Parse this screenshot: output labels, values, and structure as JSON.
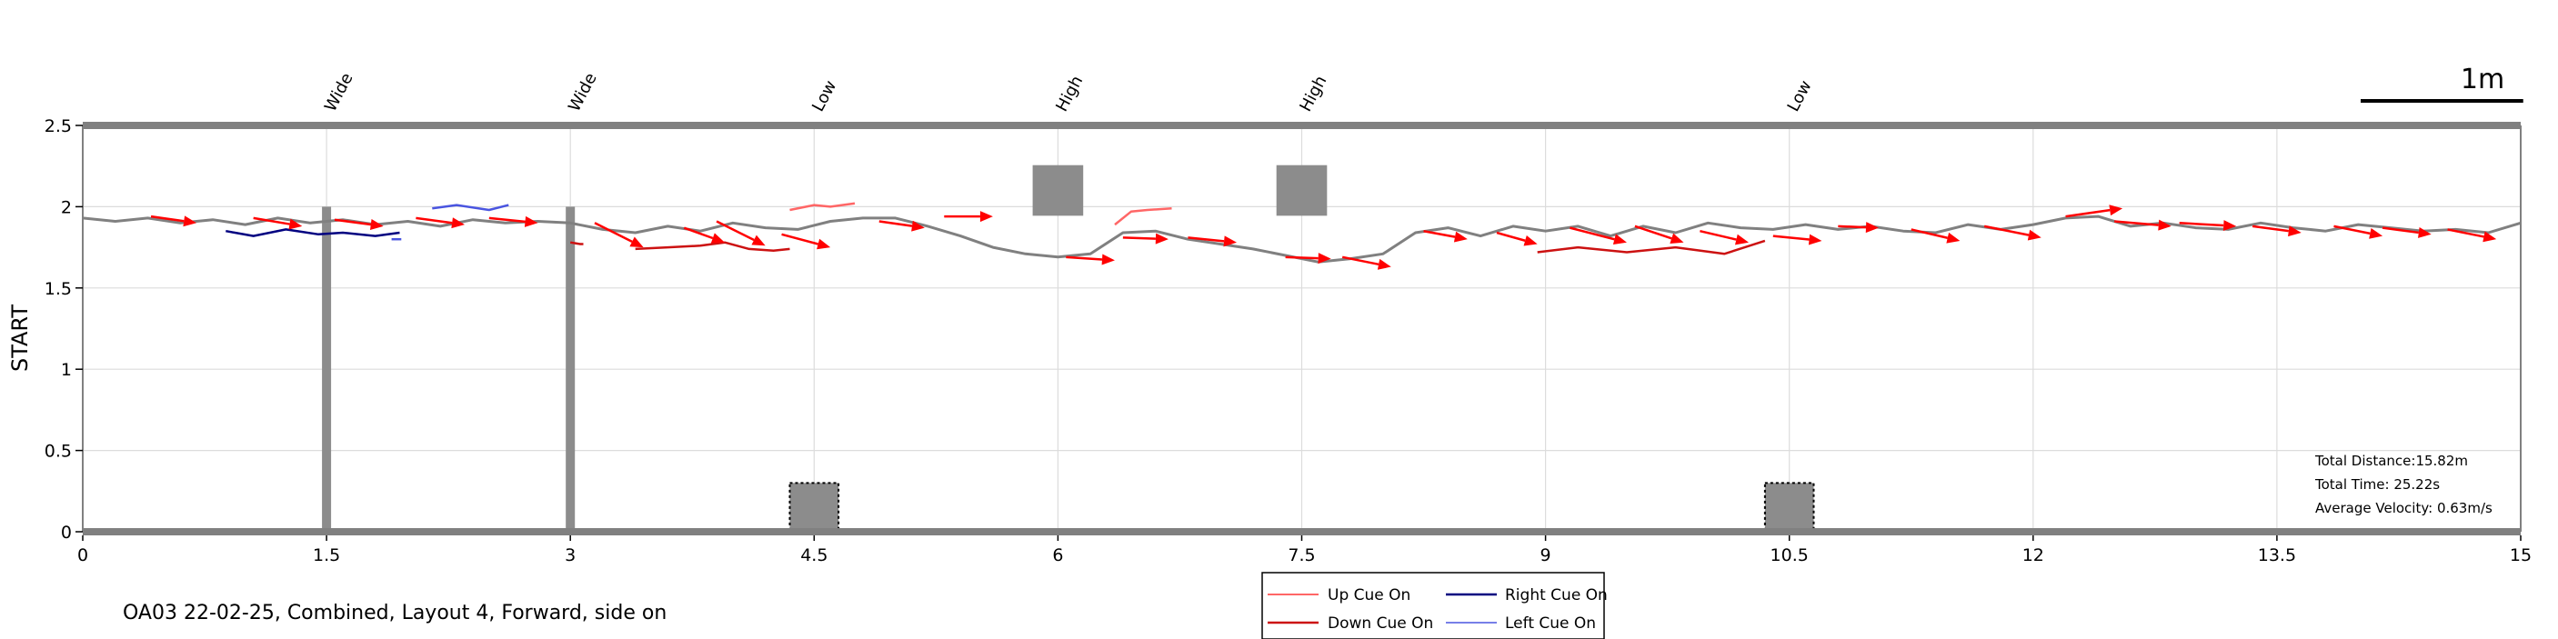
{
  "chart_data": {
    "type": "line",
    "ylabel": "START",
    "xlabel": "",
    "xlim": [
      0,
      15
    ],
    "ylim": [
      0,
      2.5
    ],
    "x_ticks": [
      "0",
      "1.5",
      "3",
      "4.5",
      "6",
      "7.5",
      "9",
      "10.5",
      "12",
      "13.5",
      "15"
    ],
    "y_ticks": [
      "0",
      "0.5",
      "1",
      "1.5",
      "2",
      "2.5"
    ],
    "grid": true,
    "scale_bar": {
      "label": "1m",
      "length": 1.0
    },
    "obstacle_labels": [
      {
        "x": 1.5,
        "label": "Wide"
      },
      {
        "x": 3.0,
        "label": "Wide"
      },
      {
        "x": 4.5,
        "label": "Low"
      },
      {
        "x": 6.0,
        "label": "High"
      },
      {
        "x": 7.5,
        "label": "High"
      },
      {
        "x": 10.5,
        "label": "Low"
      }
    ],
    "obstacles": [
      {
        "kind": "wide-bar",
        "x": 1.5,
        "y_from": 0.0,
        "y_to": 2.0
      },
      {
        "kind": "wide-bar",
        "x": 3.0,
        "y_from": 0.0,
        "y_to": 2.0
      },
      {
        "kind": "low-block",
        "x_from": 4.35,
        "x_to": 4.65,
        "y_from": 0.0,
        "y_to": 0.3
      },
      {
        "kind": "low-block",
        "x_from": 10.35,
        "x_to": 10.65,
        "y_from": 0.0,
        "y_to": 0.3
      },
      {
        "kind": "high-block",
        "x_from": 5.85,
        "x_to": 6.15,
        "y_from": 1.95,
        "y_to": 2.25
      },
      {
        "kind": "high-block",
        "x_from": 7.35,
        "x_to": 7.65,
        "y_from": 1.95,
        "y_to": 2.25
      }
    ],
    "series": [
      {
        "name": "",
        "color": "#808080",
        "x": [
          0.0,
          0.2,
          0.4,
          0.6,
          0.8,
          1.0,
          1.2,
          1.4,
          1.6,
          1.8,
          2.0,
          2.2,
          2.4,
          2.6,
          2.8,
          3.0,
          3.2,
          3.4,
          3.6,
          3.8,
          4.0,
          4.2,
          4.4,
          4.6,
          4.8,
          5.0,
          5.2,
          5.4,
          5.6,
          5.8,
          6.0,
          6.2,
          6.4,
          6.6,
          6.8,
          7.0,
          7.2,
          7.4,
          7.6,
          7.8,
          8.0,
          8.2,
          8.4,
          8.6,
          8.8,
          9.0,
          9.2,
          9.4,
          9.6,
          9.8,
          10.0,
          10.2,
          10.4,
          10.6,
          10.8,
          11.0,
          11.2,
          11.4,
          11.6,
          11.8,
          12.0,
          12.2,
          12.4,
          12.6,
          12.8,
          13.0,
          13.2,
          13.4,
          13.6,
          13.8,
          14.0,
          14.2,
          14.4,
          14.6,
          14.8,
          15.0
        ],
        "y": [
          1.93,
          1.91,
          1.93,
          1.9,
          1.92,
          1.89,
          1.93,
          1.9,
          1.92,
          1.89,
          1.91,
          1.88,
          1.92,
          1.9,
          1.91,
          1.9,
          1.86,
          1.84,
          1.88,
          1.85,
          1.9,
          1.87,
          1.86,
          1.91,
          1.93,
          1.93,
          1.88,
          1.82,
          1.75,
          1.71,
          1.69,
          1.71,
          1.84,
          1.85,
          1.8,
          1.77,
          1.74,
          1.7,
          1.66,
          1.68,
          1.71,
          1.84,
          1.87,
          1.82,
          1.88,
          1.85,
          1.88,
          1.82,
          1.88,
          1.84,
          1.9,
          1.87,
          1.86,
          1.89,
          1.86,
          1.88,
          1.85,
          1.84,
          1.89,
          1.86,
          1.89,
          1.93,
          1.94,
          1.88,
          1.9,
          1.87,
          1.86,
          1.9,
          1.87,
          1.85,
          1.89,
          1.87,
          1.85,
          1.86,
          1.84,
          1.9
        ]
      }
    ],
    "cue_series": [
      {
        "name": "Up Cue On",
        "color": "#ff6666",
        "segments": [
          {
            "x": [
              4.35,
              4.5,
              4.6,
              4.75
            ],
            "y": [
              1.98,
              2.01,
              2.0,
              2.02
            ]
          },
          {
            "x": [
              6.35,
              6.45,
              6.55,
              6.7
            ],
            "y": [
              1.89,
              1.97,
              1.98,
              1.99
            ]
          }
        ]
      },
      {
        "name": "Down Cue On",
        "color": "#cc1111",
        "segments": [
          {
            "x": [
              3.0,
              3.06,
              3.08
            ],
            "y": [
              1.78,
              1.77,
              1.77
            ]
          },
          {
            "x": [
              3.4,
              3.6,
              3.8,
              3.95,
              4.1,
              4.25,
              4.35
            ],
            "y": [
              1.74,
              1.75,
              1.76,
              1.78,
              1.74,
              1.73,
              1.74
            ]
          },
          {
            "x": [
              8.95,
              9.2,
              9.5,
              9.8,
              10.1,
              10.35
            ],
            "y": [
              1.72,
              1.75,
              1.72,
              1.75,
              1.71,
              1.79
            ]
          }
        ]
      },
      {
        "name": "Right Cue On",
        "color": "#000080",
        "segments": [
          {
            "x": [
              0.88,
              1.05,
              1.25,
              1.45,
              1.6,
              1.8,
              1.95
            ],
            "y": [
              1.85,
              1.82,
              1.86,
              1.83,
              1.84,
              1.82,
              1.84
            ]
          }
        ]
      },
      {
        "name": "Left Cue On",
        "color": "#4a55e0",
        "segments": [
          {
            "x": [
              2.15,
              2.3,
              2.5,
              2.62
            ],
            "y": [
              1.99,
              2.01,
              1.98,
              2.01
            ]
          },
          {
            "x": [
              1.9,
              1.96
            ],
            "y": [
              1.8,
              1.8
            ]
          }
        ]
      }
    ],
    "arrows": [
      {
        "x": [
          0.42,
          0.7
        ],
        "y": [
          1.94,
          1.9
        ]
      },
      {
        "x": [
          1.05,
          1.35
        ],
        "y": [
          1.93,
          1.88
        ]
      },
      {
        "x": [
          1.55,
          1.85
        ],
        "y": [
          1.92,
          1.88
        ]
      },
      {
        "x": [
          2.05,
          2.35
        ],
        "y": [
          1.93,
          1.89
        ]
      },
      {
        "x": [
          2.5,
          2.8
        ],
        "y": [
          1.93,
          1.9
        ]
      },
      {
        "x": [
          3.15,
          3.45
        ],
        "y": [
          1.9,
          1.75
        ]
      },
      {
        "x": [
          3.7,
          3.95
        ],
        "y": [
          1.87,
          1.78
        ]
      },
      {
        "x": [
          3.9,
          4.2
        ],
        "y": [
          1.91,
          1.76
        ]
      },
      {
        "x": [
          4.3,
          4.6
        ],
        "y": [
          1.83,
          1.75
        ]
      },
      {
        "x": [
          4.9,
          5.18
        ],
        "y": [
          1.91,
          1.87
        ]
      },
      {
        "x": [
          5.3,
          5.6
        ],
        "y": [
          1.94,
          1.94
        ]
      },
      {
        "x": [
          6.05,
          6.35
        ],
        "y": [
          1.69,
          1.67
        ]
      },
      {
        "x": [
          6.4,
          6.68
        ],
        "y": [
          1.81,
          1.8
        ]
      },
      {
        "x": [
          6.8,
          7.1
        ],
        "y": [
          1.81,
          1.78
        ]
      },
      {
        "x": [
          7.4,
          7.68
        ],
        "y": [
          1.69,
          1.68
        ]
      },
      {
        "x": [
          7.75,
          8.05
        ],
        "y": [
          1.69,
          1.63
        ]
      },
      {
        "x": [
          8.25,
          8.52
        ],
        "y": [
          1.85,
          1.8
        ]
      },
      {
        "x": [
          8.7,
          8.95
        ],
        "y": [
          1.84,
          1.77
        ]
      },
      {
        "x": [
          9.15,
          9.5
        ],
        "y": [
          1.87,
          1.78
        ]
      },
      {
        "x": [
          9.55,
          9.85
        ],
        "y": [
          1.88,
          1.78
        ]
      },
      {
        "x": [
          9.95,
          10.25
        ],
        "y": [
          1.85,
          1.78
        ]
      },
      {
        "x": [
          10.4,
          10.7
        ],
        "y": [
          1.82,
          1.79
        ]
      },
      {
        "x": [
          10.8,
          11.05
        ],
        "y": [
          1.88,
          1.87
        ]
      },
      {
        "x": [
          11.25,
          11.55
        ],
        "y": [
          1.86,
          1.79
        ]
      },
      {
        "x": [
          11.7,
          12.05
        ],
        "y": [
          1.88,
          1.81
        ]
      },
      {
        "x": [
          12.2,
          12.55
        ],
        "y": [
          1.94,
          1.99
        ]
      },
      {
        "x": [
          12.5,
          12.85
        ],
        "y": [
          1.91,
          1.88
        ]
      },
      {
        "x": [
          12.9,
          13.25
        ],
        "y": [
          1.9,
          1.88
        ]
      },
      {
        "x": [
          13.35,
          13.65
        ],
        "y": [
          1.88,
          1.84
        ]
      },
      {
        "x": [
          13.85,
          14.15
        ],
        "y": [
          1.88,
          1.82
        ]
      },
      {
        "x": [
          14.15,
          14.45
        ],
        "y": [
          1.87,
          1.83
        ]
      },
      {
        "x": [
          14.55,
          14.85
        ],
        "y": [
          1.86,
          1.8
        ]
      }
    ],
    "arrow_color": "#ff0000",
    "stats": [
      "Total Distance:15.82m",
      "Total Time: 25.22s",
      "Average Velocity: 0.63m/s"
    ],
    "legend_position": "bottom-center"
  },
  "footer": {
    "caption": "OA03 22-02-25, Combined, Layout 4, Forward, side on"
  },
  "colors": {
    "frame": "#808080",
    "grid": "#dcdcdc",
    "obstacle": "#8c8c8c"
  }
}
